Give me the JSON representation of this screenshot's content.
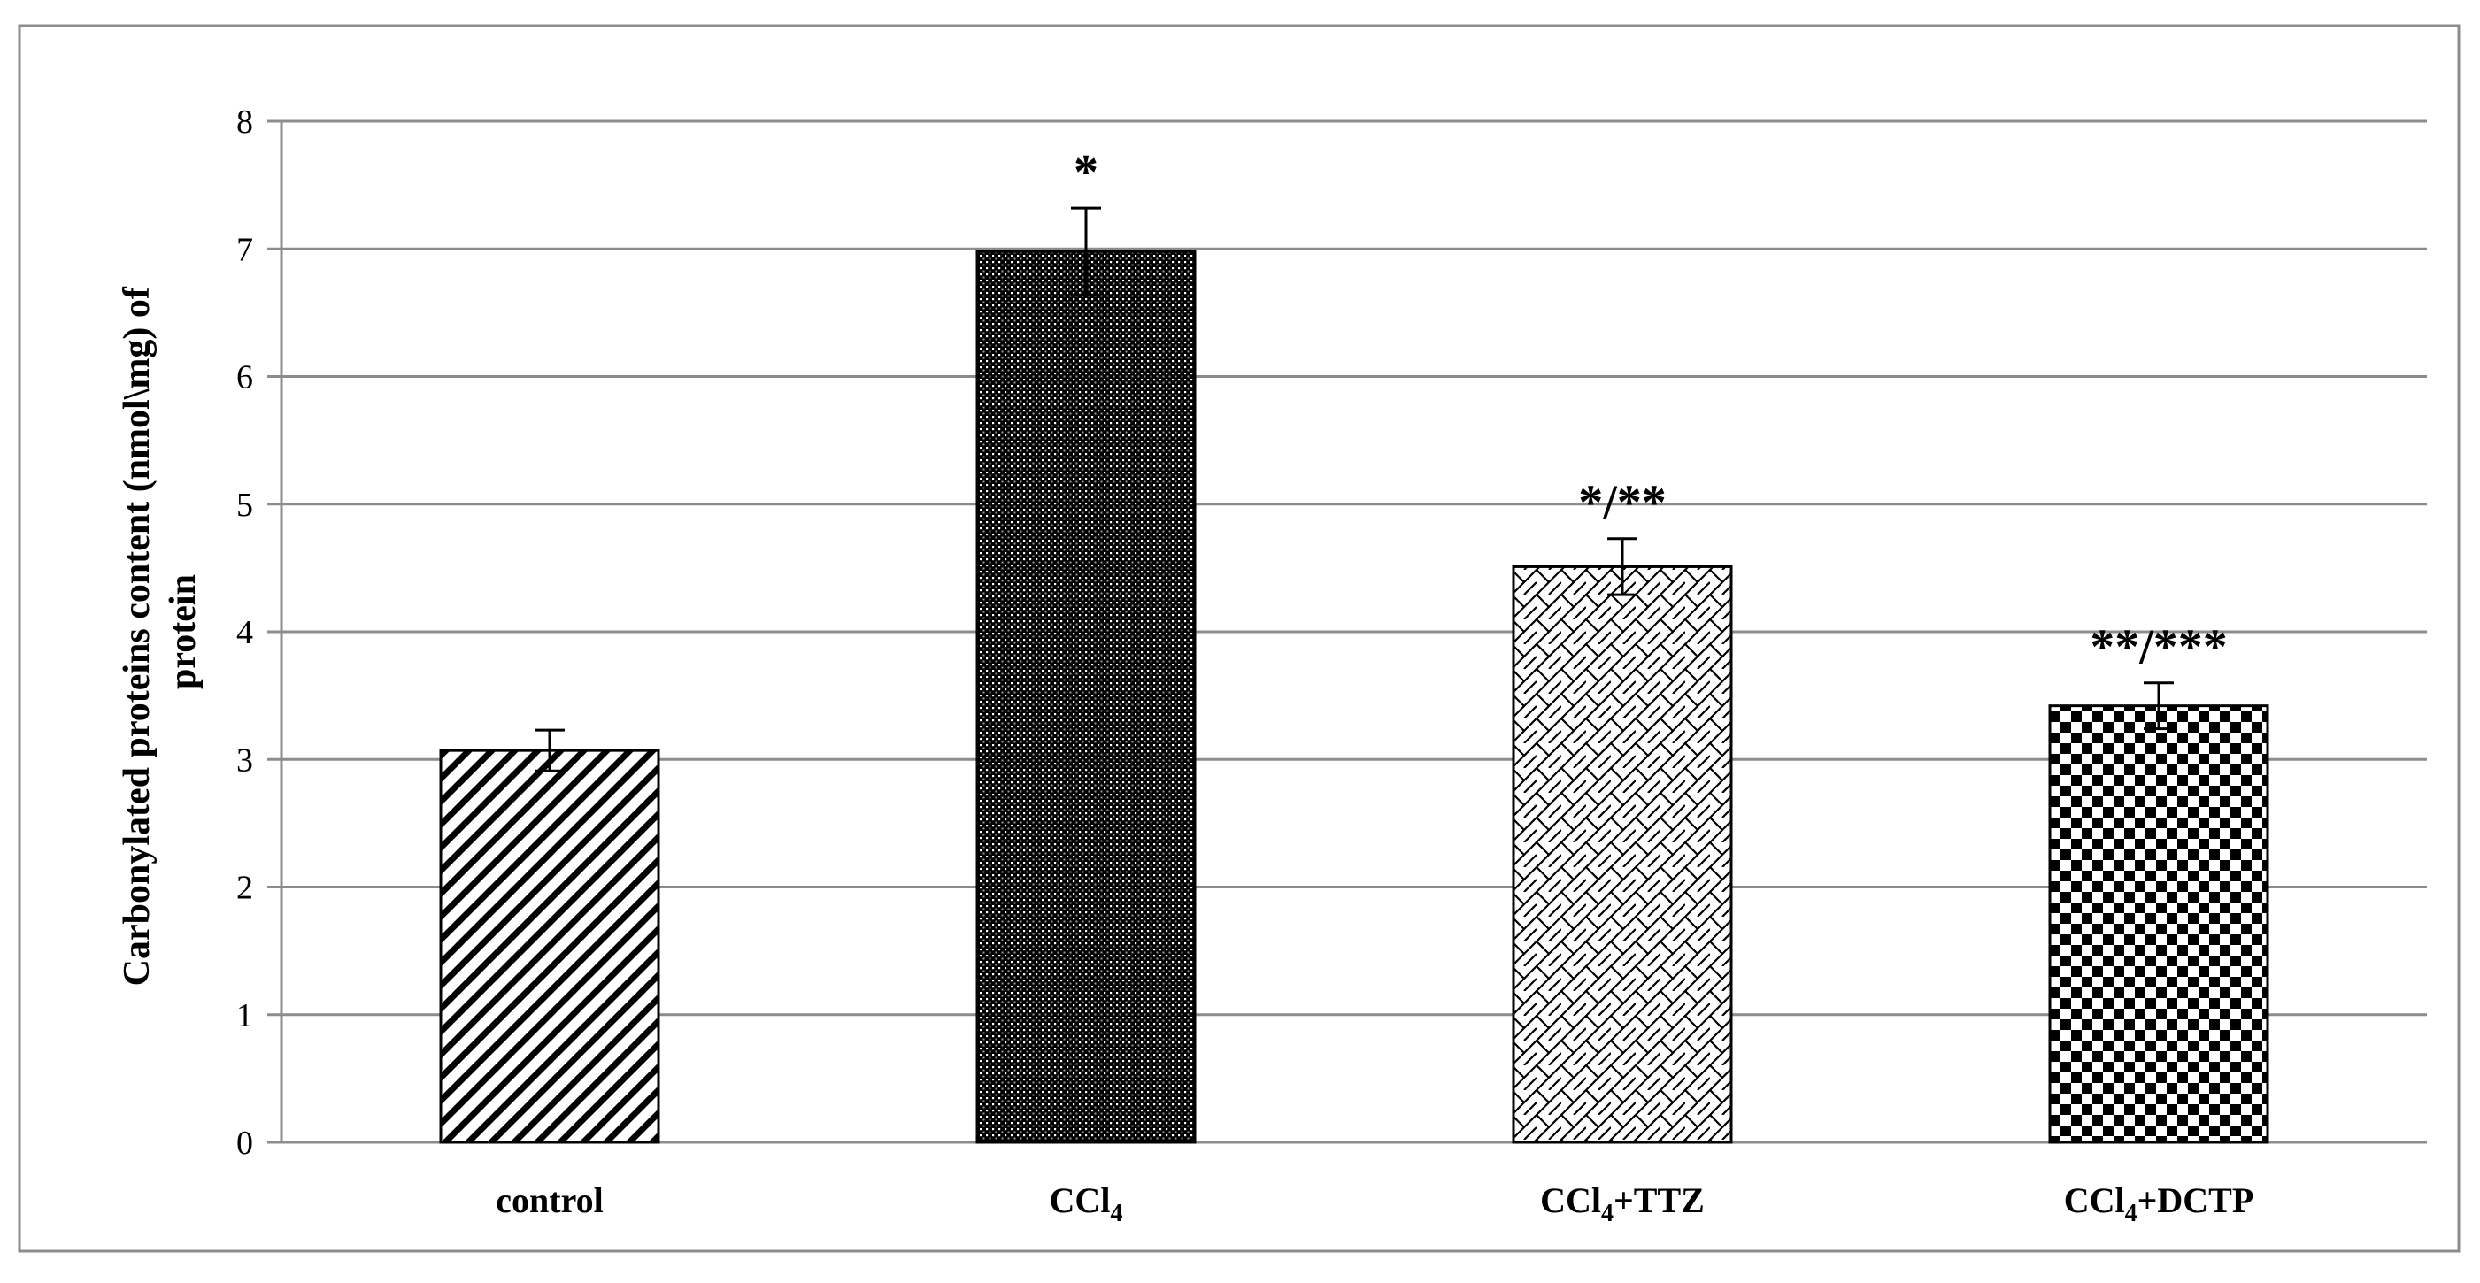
{
  "chart_data": {
    "type": "bar",
    "categories": [
      {
        "main": "control",
        "sub": "",
        "tail": ""
      },
      {
        "main": "CCl",
        "sub": "4",
        "tail": ""
      },
      {
        "main": "CCl",
        "sub": "4",
        "tail": "+TTZ"
      },
      {
        "main": "CCl",
        "sub": "4",
        "tail": "+DCTP"
      }
    ],
    "values": [
      3.07,
      6.98,
      4.51,
      3.42
    ],
    "errors": [
      0.16,
      0.34,
      0.22,
      0.18
    ],
    "significance": [
      "",
      "*",
      "*/**",
      "**/***"
    ],
    "patterns": [
      "diagonal-stripes",
      "fine-dots",
      "crosshatch",
      "checkerboard"
    ],
    "ylabel": {
      "line1": "Carbonylated proteins content (nmol\\mg) of",
      "line2": "protein"
    },
    "ylim": [
      0,
      8
    ],
    "yticks": [
      "0",
      "1",
      "2",
      "3",
      "4",
      "5",
      "6",
      "7",
      "8"
    ],
    "grid": true,
    "legend": "none"
  }
}
